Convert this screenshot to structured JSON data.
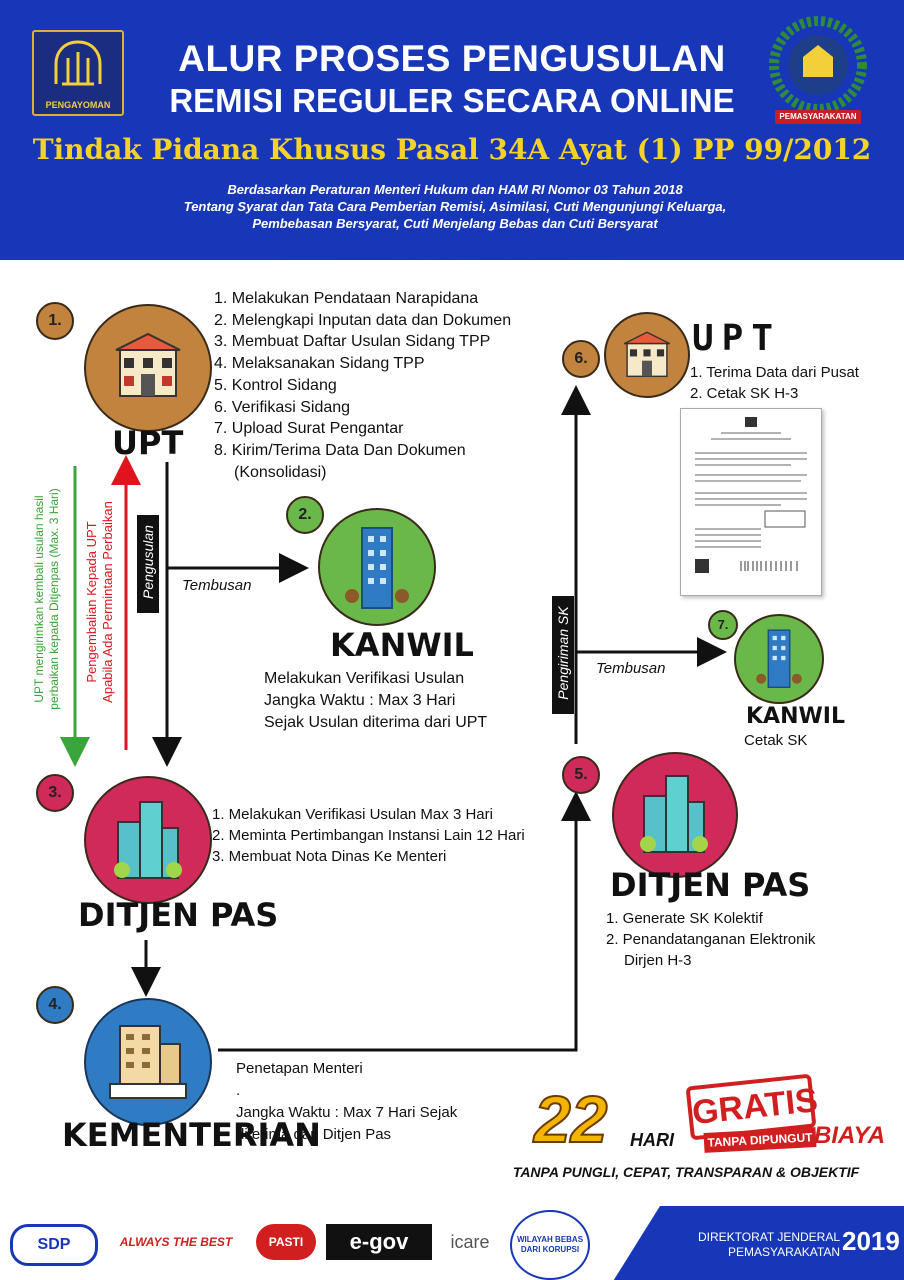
{
  "header": {
    "title_line1": "ALUR PROSES PENGUSULAN",
    "title_line2": "REMISI REGULER SECARA ONLINE",
    "subtitle": "Tindak Pidana Khusus Pasal 34A Ayat (1) PP 99/2012",
    "basis_line1": "Berdasarkan Peraturan Menteri Hukum dan HAM RI Nomor 03 Tahun 2018",
    "basis_line2": "Tentang Syarat dan Tata Cara Pemberian Remisi, Asimilasi, Cuti Mengunjungi Keluarga,",
    "basis_line3": "Pembebasan Bersyarat, Cuti Menjelang Bebas dan Cuti Bersyarat",
    "logo_left_text": "PENGAYOMAN",
    "logo_right_text": "PEMASYARAKATAN"
  },
  "steps": {
    "s1": {
      "num": "1.",
      "title": "UPT",
      "items": [
        "1. Melakukan Pendataan Narapidana",
        "2. Melengkapi Inputan data dan Dokumen",
        "3. Membuat Daftar Usulan Sidang TPP",
        "4. Melaksanakan Sidang TPP",
        "5. Kontrol Sidang",
        "6. Verifikasi Sidang",
        "7. Upload Surat Pengantar",
        "8. Kirim/Terima Data Dan Dokumen",
        "(Konsolidasi)"
      ]
    },
    "s2": {
      "num": "2.",
      "title": "KANWIL",
      "notes": [
        "Melakukan Verifikasi Usulan",
        "Jangka Waktu : Max 3 Hari",
        "Sejak Usulan diterima dari UPT"
      ]
    },
    "s3": {
      "num": "3.",
      "title": "DITJEN PAS",
      "items": [
        "1. Melakukan Verifikasi Usulan Max 3 Hari",
        "2. Meminta Pertimbangan Instansi Lain 12 Hari",
        "3. Membuat Nota Dinas Ke Menteri"
      ]
    },
    "s4": {
      "num": "4.",
      "title": "KEMENTERIAN",
      "notes": [
        "Penetapan Menteri",
        ".",
        "Jangka Waktu : Max 7 Hari Sejak",
        "diterima dari Ditjen Pas"
      ]
    },
    "s5": {
      "num": "5.",
      "title": "DITJEN PAS",
      "items": [
        "1. Generate SK Kolektif",
        "2. Penandatanganan Elektronik",
        "Dirjen H-3"
      ]
    },
    "s6": {
      "num": "6.",
      "title": "UPT",
      "items": [
        "1. Terima Data dari Pusat",
        "2. Cetak SK H-3"
      ]
    },
    "s7": {
      "num": "7.",
      "title": "KANWIL",
      "note": "Cetak SK"
    }
  },
  "arrows": {
    "pengusulan": "Pengusulan",
    "tembusan_1": "Tembusan",
    "tembusan_2": "Tembusan",
    "pengiriman_sk": "Pengiriman SK",
    "green_line1": "UPT mengirimkan kembali usulan hasil",
    "green_line2": "perbaikan kepada Ditjenpas (Max. 3 Hari)",
    "red_line1": "Pengembalian Kepada UPT",
    "red_line2": "Apabila Ada Permintaan Perbaikan"
  },
  "promo": {
    "days_number": "22",
    "days_label": "HARI",
    "gratis": "GRATIS",
    "tanpa_dipungut": "TANPA DIPUNGUT",
    "biaya": "BIAYA",
    "slogan": "TANPA PUNGLI, CEPAT, TRANSPARAN & OBJEKTIF"
  },
  "footer": {
    "logos": [
      "SDP",
      "ALWAYS THE BEST",
      "PASTI",
      "e-gov",
      "icare",
      "WILAYAH BEBAS DARI KORUPSI"
    ],
    "org_line1": "DIREKTORAT JENDERAL",
    "org_line2": "PEMASYARAKATAN",
    "year": "2019"
  },
  "colors": {
    "header_blue": "#1737b8",
    "accent_yellow": "#f5d226",
    "brown": "#c1833d",
    "crimson": "#cf2a5a",
    "green": "#6bb84a",
    "blue": "#2f7cc4"
  }
}
